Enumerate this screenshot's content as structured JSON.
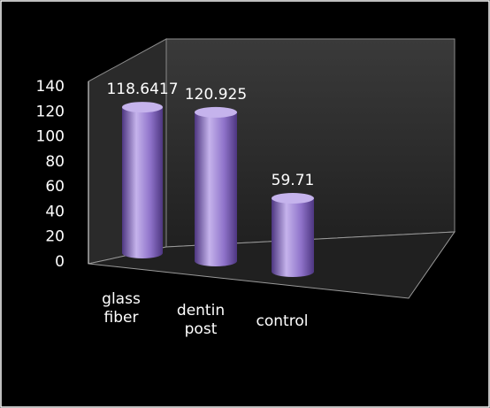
{
  "chart_data": {
    "type": "bar",
    "style": "3d-cylinder",
    "title": "",
    "xlabel": "",
    "ylabel": "",
    "categories": [
      "glass fiber",
      "dentin post",
      "control"
    ],
    "category_lines": [
      [
        "glass",
        "fiber"
      ],
      [
        "dentin",
        "post"
      ],
      [
        "control"
      ]
    ],
    "values": [
      118.6417,
      120.925,
      59.71
    ],
    "data_labels": [
      "118.6417",
      "120.925",
      "59.71"
    ],
    "ylim": [
      0,
      140
    ],
    "yticks": [
      0,
      20,
      40,
      60,
      80,
      100,
      120,
      140
    ],
    "grid": false,
    "legend": "none",
    "colors": {
      "background": "#000000",
      "border": "#ffffff",
      "bar": "#8e72c9",
      "bar_dark": "#4d3680",
      "bar_light": "#c5b3ec",
      "back_wall": "#3a3a3a",
      "floor": "#202020",
      "text": "#ffffff"
    }
  }
}
